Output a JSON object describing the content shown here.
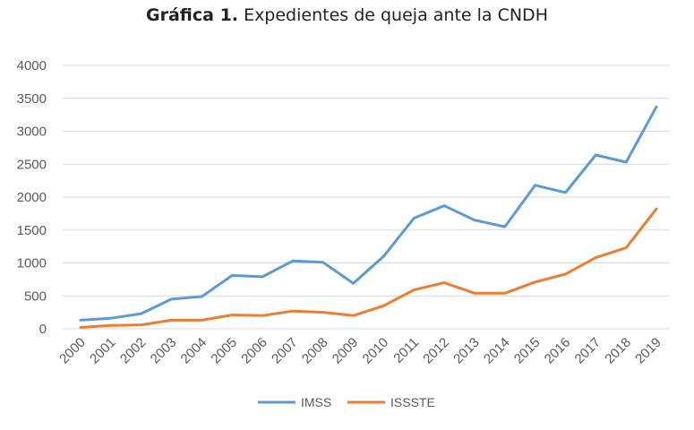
{
  "title": {
    "prefix": "Gráfica 1.",
    "text": "Expedientes de queja ante la CNDH"
  },
  "colors": {
    "IMSS": "#5b9bd5",
    "ISSSTE": "#ed7d31",
    "grid": "#d9d9d9",
    "text": "#595959"
  },
  "chart_data": {
    "type": "line",
    "title": "Gráfica 1. Expedientes de queja ante la CNDH",
    "xlabel": "",
    "ylabel": "",
    "ylim": [
      0,
      4000
    ],
    "yticks": [
      0,
      500,
      1000,
      1500,
      2000,
      2500,
      3000,
      3500,
      4000
    ],
    "grid": true,
    "legend": "bottom",
    "categories": [
      "2000",
      "2001",
      "2002",
      "2003",
      "2004",
      "2005",
      "2006",
      "2007",
      "2008",
      "2009",
      "2010",
      "2011",
      "2012",
      "2013",
      "2014",
      "2015",
      "2016",
      "2017",
      "2018",
      "2019"
    ],
    "series": [
      {
        "name": "IMSS",
        "values": [
          130,
          160,
          230,
          450,
          490,
          810,
          790,
          1030,
          1010,
          690,
          1100,
          1680,
          1870,
          1650,
          1550,
          2180,
          2070,
          2640,
          2530,
          3370
        ]
      },
      {
        "name": "ISSSTE",
        "values": [
          20,
          50,
          60,
          130,
          130,
          210,
          200,
          270,
          250,
          200,
          350,
          590,
          700,
          540,
          540,
          710,
          830,
          1080,
          1230,
          1820
        ]
      }
    ]
  }
}
